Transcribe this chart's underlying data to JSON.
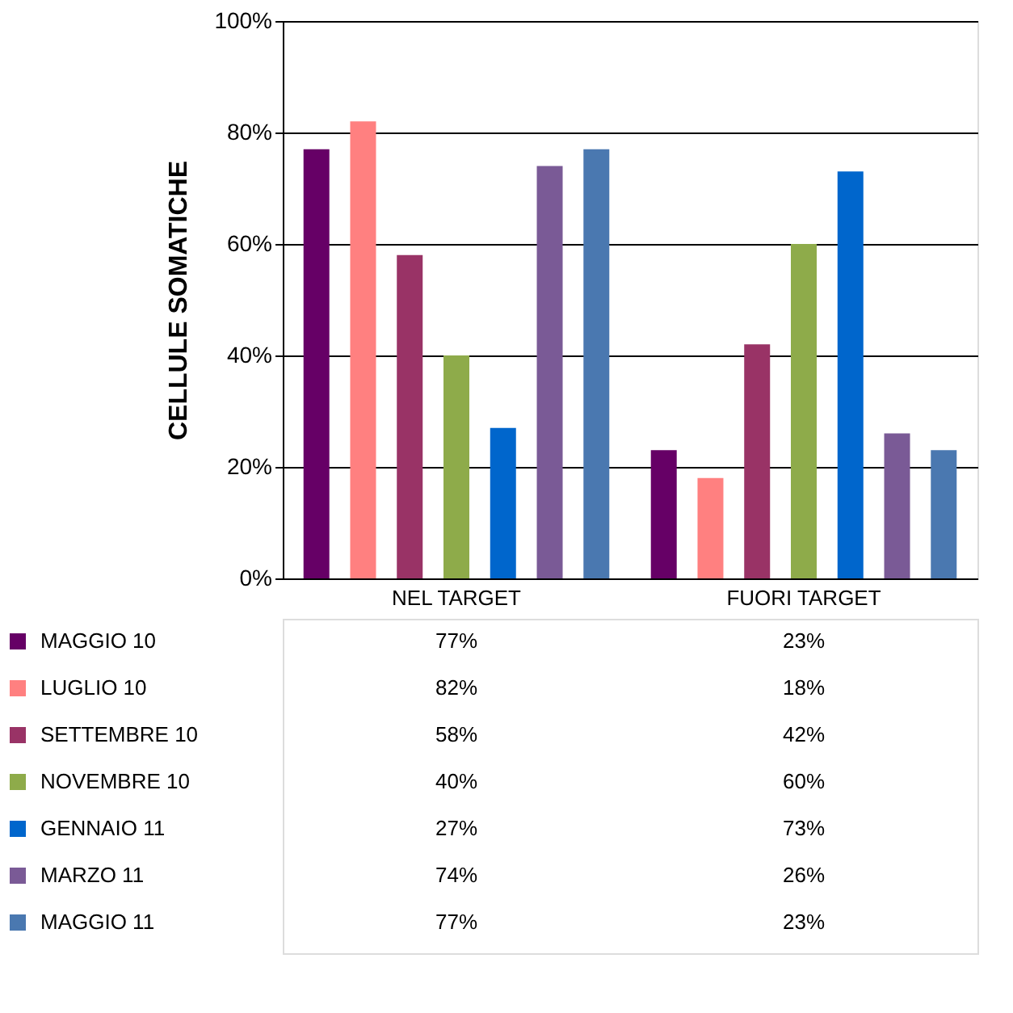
{
  "chart_data": {
    "type": "bar",
    "ylabel": "CELLULE SOMATICHE",
    "categories": [
      "NEL TARGET",
      "FUORI TARGET"
    ],
    "series": [
      {
        "name": "MAGGIO 10",
        "color": "#660066",
        "values": [
          77,
          23
        ],
        "value_labels": [
          "77%",
          "23%"
        ]
      },
      {
        "name": "LUGLIO 10",
        "color": "#ff8080",
        "values": [
          82,
          18
        ],
        "value_labels": [
          "82%",
          "18%"
        ]
      },
      {
        "name": "SETTEMBRE 10",
        "color": "#993366",
        "values": [
          58,
          42
        ],
        "value_labels": [
          "58%",
          "42%"
        ]
      },
      {
        "name": "NOVEMBRE 10",
        "color": "#8eab4a",
        "values": [
          40,
          60
        ],
        "value_labels": [
          "40%",
          "60%"
        ]
      },
      {
        "name": "GENNAIO 11",
        "color": "#0066cc",
        "values": [
          27,
          73
        ],
        "value_labels": [
          "27%",
          "73%"
        ]
      },
      {
        "name": "MARZO 11",
        "color": "#7a5a96",
        "values": [
          74,
          26
        ],
        "value_labels": [
          "74%",
          "26%"
        ]
      },
      {
        "name": "MAGGIO 11",
        "color": "#4a78b0",
        "values": [
          77,
          23
        ],
        "value_labels": [
          "77%",
          "23%"
        ]
      }
    ],
    "ylim": [
      0,
      100
    ],
    "yticks": [
      {
        "value": 0,
        "label": "0%"
      },
      {
        "value": 20,
        "label": "20%"
      },
      {
        "value": 40,
        "label": "40%"
      },
      {
        "value": 60,
        "label": "60%"
      },
      {
        "value": 80,
        "label": "80%"
      },
      {
        "value": 100,
        "label": "100%"
      }
    ],
    "grid": "y",
    "legend": "bottom"
  }
}
